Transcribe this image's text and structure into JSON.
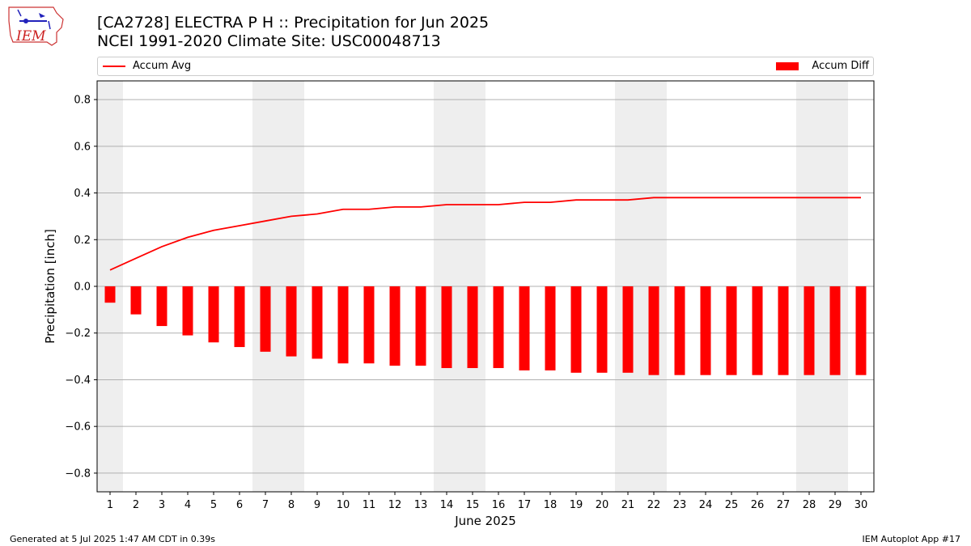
{
  "header": {
    "title_line1": "[CA2728] ELECTRA P H :: Precipitation for Jun 2025",
    "title_line2": "NCEI 1991-2020 Climate Site: USC00048713"
  },
  "logo": {
    "text": "IEM"
  },
  "footer": {
    "left": "Generated at 5 Jul 2025 1:47 AM CDT in 0.39s",
    "right": "IEM Autoplot App #17"
  },
  "chart_data": {
    "type": "bar",
    "title": "[CA2728] ELECTRA P H :: Precipitation for Jun 2025",
    "subtitle": "NCEI 1991-2020 Climate Site: USC00048713",
    "xlabel": "June 2025",
    "ylabel": "Precipitation [inch]",
    "ylim": [
      -0.88,
      0.88
    ],
    "yticks": [
      -0.8,
      -0.6,
      -0.4,
      -0.2,
      0.0,
      0.2,
      0.4,
      0.6,
      0.8
    ],
    "ytick_labels": [
      "−0.8",
      "−0.6",
      "−0.4",
      "−0.2",
      "0.0",
      "0.2",
      "0.4",
      "0.6",
      "0.8"
    ],
    "categories": [
      "1",
      "2",
      "3",
      "4",
      "5",
      "6",
      "7",
      "8",
      "9",
      "10",
      "11",
      "12",
      "13",
      "14",
      "15",
      "16",
      "17",
      "18",
      "19",
      "20",
      "21",
      "22",
      "23",
      "24",
      "25",
      "26",
      "27",
      "28",
      "29",
      "30"
    ],
    "weekend_days": [
      1,
      7,
      8,
      14,
      15,
      21,
      22,
      28,
      29
    ],
    "grid": "horizontal",
    "legend_placement": "top",
    "series": [
      {
        "name": "Accum Avg",
        "type": "line",
        "color": "#ff0000",
        "values": [
          0.07,
          0.12,
          0.17,
          0.21,
          0.24,
          0.26,
          0.28,
          0.3,
          0.31,
          0.33,
          0.33,
          0.34,
          0.34,
          0.35,
          0.35,
          0.35,
          0.36,
          0.36,
          0.37,
          0.37,
          0.37,
          0.38,
          0.38,
          0.38,
          0.38,
          0.38,
          0.38,
          0.38,
          0.38,
          0.38
        ]
      },
      {
        "name": "Accum Diff",
        "type": "bar",
        "color": "#ff0000",
        "values": [
          -0.07,
          -0.12,
          -0.17,
          -0.21,
          -0.24,
          -0.26,
          -0.28,
          -0.3,
          -0.31,
          -0.33,
          -0.33,
          -0.34,
          -0.34,
          -0.35,
          -0.35,
          -0.35,
          -0.36,
          -0.36,
          -0.37,
          -0.37,
          -0.37,
          -0.38,
          -0.38,
          -0.38,
          -0.38,
          -0.38,
          -0.38,
          -0.38,
          -0.38,
          -0.38
        ]
      }
    ]
  }
}
